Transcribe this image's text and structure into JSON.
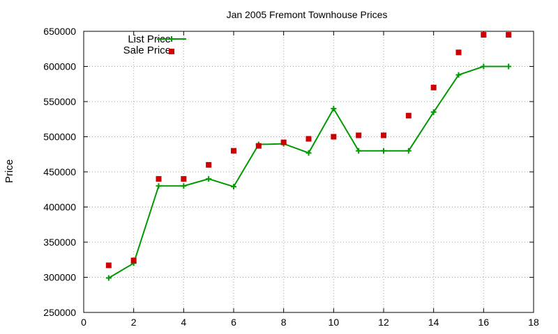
{
  "chart_data": {
    "type": "line",
    "title": "Jan 2005 Fremont Townhouse Prices",
    "xlabel": "",
    "ylabel": "Price",
    "xlim": [
      0,
      18
    ],
    "ylim": [
      250000,
      650000
    ],
    "x_ticks": [
      0,
      2,
      4,
      6,
      8,
      10,
      12,
      14,
      16,
      18
    ],
    "y_ticks": [
      250000,
      300000,
      350000,
      400000,
      450000,
      500000,
      550000,
      600000,
      650000
    ],
    "grid": true,
    "legend_position": "top-left",
    "series": [
      {
        "name": "List Price",
        "style": "line-plus",
        "color": "#009900",
        "x": [
          1,
          2,
          3,
          4,
          5,
          6,
          7,
          8,
          9,
          10,
          11,
          12,
          13,
          14,
          15,
          16,
          17
        ],
        "values": [
          299000,
          320000,
          430000,
          430000,
          440000,
          429000,
          489000,
          490000,
          477000,
          540000,
          480000,
          480000,
          480000,
          535000,
          588000,
          600000,
          600000
        ]
      },
      {
        "name": "Sale Price",
        "style": "square-marker",
        "color": "#cc0000",
        "x": [
          1,
          2,
          3,
          4,
          5,
          6,
          7,
          8,
          9,
          10,
          11,
          12,
          13,
          14,
          15,
          16,
          17
        ],
        "values": [
          317000,
          324000,
          440000,
          440000,
          460000,
          480000,
          487000,
          492000,
          497000,
          500000,
          502000,
          502000,
          530000,
          570000,
          620000,
          645000,
          645000
        ]
      }
    ]
  }
}
